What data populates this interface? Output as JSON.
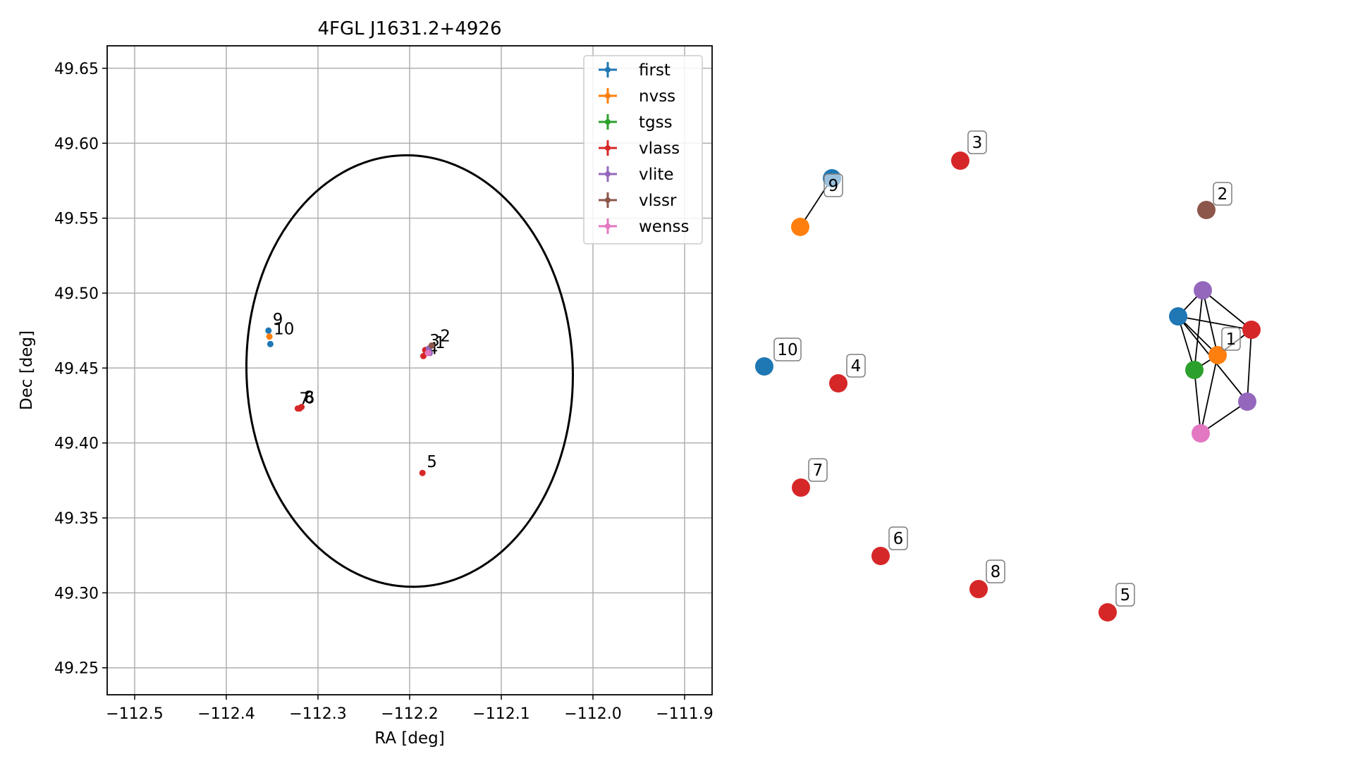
{
  "chart_data": [
    {
      "type": "scatter",
      "title": "4FGL J1631.2+4926",
      "xlabel": "RA [deg]",
      "ylabel": "Dec [deg]",
      "xlim": [
        -112.53,
        -111.87
      ],
      "ylim": [
        49.232,
        49.665
      ],
      "xticks": [
        -112.5,
        -112.4,
        -112.3,
        -112.2,
        -112.1,
        -112.0,
        -111.9
      ],
      "xtick_labels": [
        "−112.5",
        "−112.4",
        "−112.3",
        "−112.2",
        "−112.1",
        "−112.0",
        "−111.9"
      ],
      "yticks": [
        49.25,
        49.3,
        49.35,
        49.4,
        49.45,
        49.5,
        49.55,
        49.6,
        49.65
      ],
      "ytick_labels": [
        "49.25",
        "49.30",
        "49.35",
        "49.40",
        "49.45",
        "49.50",
        "49.55",
        "49.60",
        "49.65"
      ],
      "grid": true,
      "legend_position": "top-right",
      "ellipse": {
        "center": [
          -112.2,
          49.448
        ],
        "rx": 0.178,
        "ry": 0.144,
        "angle_deg": -2,
        "color": "#000000"
      },
      "series": [
        {
          "name": "first",
          "color": "#1f77b4",
          "points": [
            {
              "x": -112.354,
              "y": 49.475,
              "label": "9"
            },
            {
              "x": -112.352,
              "y": 49.466
            }
          ]
        },
        {
          "name": "nvss",
          "color": "#ff7f0e",
          "points": [
            {
              "x": -112.353,
              "y": 49.471,
              "label": "10"
            },
            {
              "x": -112.181,
              "y": 49.461
            }
          ]
        },
        {
          "name": "tgss",
          "color": "#2ca02c",
          "points": [
            {
              "x": -112.182,
              "y": 49.46
            }
          ]
        },
        {
          "name": "vlass",
          "color": "#d62728",
          "points": [
            {
              "x": -112.183,
              "y": 49.462,
              "label": "3"
            },
            {
              "x": -112.185,
              "y": 49.458,
              "label": "4"
            },
            {
              "x": -112.18,
              "y": 49.462,
              "label": "1"
            },
            {
              "x": -112.186,
              "y": 49.38,
              "label": "5"
            },
            {
              "x": -112.322,
              "y": 49.423,
              "label": "7"
            },
            {
              "x": -112.318,
              "y": 49.424,
              "label": "6"
            },
            {
              "x": -112.32,
              "y": 49.423,
              "label": "8"
            }
          ]
        },
        {
          "name": "vlite",
          "color": "#9467bd",
          "points": [
            {
              "x": -112.179,
              "y": 49.463
            },
            {
              "x": -112.178,
              "y": 49.46
            }
          ]
        },
        {
          "name": "vlssr",
          "color": "#8c564b",
          "points": [
            {
              "x": -112.176,
              "y": 49.465,
              "label": "2"
            }
          ]
        },
        {
          "name": "wenss",
          "color": "#e377c2",
          "points": [
            {
              "x": -112.18,
              "y": 49.46
            }
          ]
        }
      ]
    },
    {
      "type": "network",
      "nodes": [
        {
          "id": "first-9",
          "color": "#1f77b4",
          "label": "9"
        },
        {
          "id": "nvss-9",
          "color": "#ff7f0e"
        },
        {
          "id": "vlass-3",
          "color": "#d62728",
          "label": "3"
        },
        {
          "id": "vlssr-2",
          "color": "#8c564b",
          "label": "2"
        },
        {
          "id": "vlite-a",
          "color": "#9467bd"
        },
        {
          "id": "first-1",
          "color": "#1f77b4"
        },
        {
          "id": "vlass-1",
          "color": "#d62728"
        },
        {
          "id": "nvss-1",
          "color": "#ff7f0e",
          "label": "1"
        },
        {
          "id": "tgss-1",
          "color": "#2ca02c"
        },
        {
          "id": "vlite-b",
          "color": "#9467bd"
        },
        {
          "id": "wenss-1",
          "color": "#e377c2"
        },
        {
          "id": "first-10",
          "color": "#1f77b4",
          "label": "10"
        },
        {
          "id": "vlass-4",
          "color": "#d62728",
          "label": "4"
        },
        {
          "id": "vlass-7",
          "color": "#d62728",
          "label": "7"
        },
        {
          "id": "vlass-6",
          "color": "#d62728",
          "label": "6"
        },
        {
          "id": "vlass-8",
          "color": "#d62728",
          "label": "8"
        },
        {
          "id": "vlass-5",
          "color": "#d62728",
          "label": "5"
        }
      ],
      "edges": [
        [
          "first-9",
          "nvss-9"
        ],
        [
          "vlite-a",
          "first-1"
        ],
        [
          "vlite-a",
          "vlass-1"
        ],
        [
          "vlite-a",
          "nvss-1"
        ],
        [
          "vlite-a",
          "tgss-1"
        ],
        [
          "first-1",
          "vlass-1"
        ],
        [
          "first-1",
          "nvss-1"
        ],
        [
          "first-1",
          "tgss-1"
        ],
        [
          "first-1",
          "vlite-b"
        ],
        [
          "vlass-1",
          "nvss-1"
        ],
        [
          "vlass-1",
          "vlite-b"
        ],
        [
          "tgss-1",
          "nvss-1"
        ],
        [
          "tgss-1",
          "wenss-1"
        ],
        [
          "nvss-1",
          "wenss-1"
        ],
        [
          "wenss-1",
          "vlite-b"
        ]
      ]
    }
  ]
}
